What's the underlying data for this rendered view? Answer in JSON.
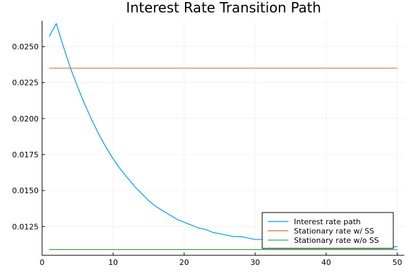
{
  "chart_data": {
    "type": "line",
    "title": "Interest Rate Transition Path",
    "xlabel": "",
    "ylabel": "",
    "xlim": [
      0,
      51
    ],
    "ylim": [
      0.0105,
      0.0268
    ],
    "x_ticks": [
      0,
      10,
      20,
      30,
      40,
      50
    ],
    "x_tick_labels": [
      "0",
      "10",
      "20",
      "30",
      "40",
      "50"
    ],
    "y_ticks": [
      0.0125,
      0.015,
      0.0175,
      0.02,
      0.0225,
      0.025
    ],
    "y_tick_labels": [
      "0.0125",
      "0.0150",
      "0.0175",
      "0.0200",
      "0.0225",
      "0.0250"
    ],
    "grid": true,
    "legend_position": "bottom-right",
    "series": [
      {
        "name": "Interest rate path",
        "color": "#009AFA",
        "x": [
          1,
          2,
          3,
          4,
          5,
          6,
          7,
          8,
          9,
          10,
          11,
          12,
          13,
          14,
          15,
          16,
          17,
          18,
          19,
          20,
          21,
          22,
          23,
          24,
          25,
          26,
          27,
          28,
          29,
          30,
          31,
          32,
          33,
          34,
          35,
          36,
          37,
          38,
          39,
          40,
          41,
          42,
          43,
          44,
          45,
          46,
          47,
          48,
          49,
          50
        ],
        "y": [
          0.0257,
          0.0266,
          0.025,
          0.0235,
          0.0222,
          0.021,
          0.0199,
          0.0189,
          0.018,
          0.0172,
          0.0165,
          0.0159,
          0.0153,
          0.0148,
          0.0143,
          0.0139,
          0.0136,
          0.0133,
          0.013,
          0.0128,
          0.0126,
          0.0124,
          0.0123,
          0.0121,
          0.012,
          0.0119,
          0.0118,
          0.0118,
          0.0117,
          0.0116,
          0.0116,
          0.0115,
          0.0115,
          0.0114,
          0.0114,
          0.0114,
          0.0113,
          0.0113,
          0.0113,
          0.0113,
          0.0112,
          0.0112,
          0.0112,
          0.0112,
          0.0112,
          0.0112,
          0.0112,
          0.0111,
          0.0111,
          0.0111
        ]
      },
      {
        "name": "Stationary rate w/ SS",
        "color": "#E36F47",
        "x": [
          1,
          50
        ],
        "y": [
          0.0235,
          0.0235
        ]
      },
      {
        "name": "Stationary rate w/o SS",
        "color": "#3DA44D",
        "x": [
          1,
          50
        ],
        "y": [
          0.0109,
          0.0109
        ]
      }
    ]
  }
}
